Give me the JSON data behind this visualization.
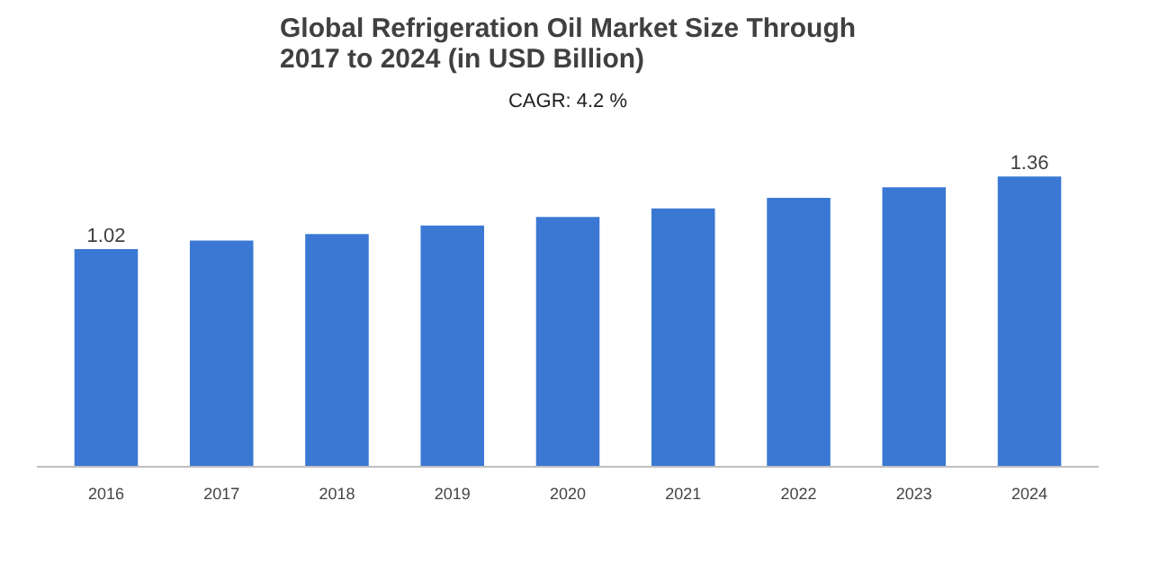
{
  "chart_data": {
    "type": "bar",
    "title": "Global Refrigeration Oil Market Size Through 2017 to 2024 (in USD Billion)",
    "categories": [
      "2016",
      "2017",
      "2018",
      "2019",
      "2020",
      "2021",
      "2022",
      "2023",
      "2024"
    ],
    "values": [
      1.02,
      1.06,
      1.09,
      1.13,
      1.17,
      1.21,
      1.26,
      1.31,
      1.36
    ],
    "value_labels": [
      "1.02",
      null,
      null,
      null,
      null,
      null,
      null,
      null,
      "1.36"
    ],
    "color": "#3a78d4",
    "annotations": [
      "CAGR: 4.2 %"
    ],
    "grid": false
  }
}
